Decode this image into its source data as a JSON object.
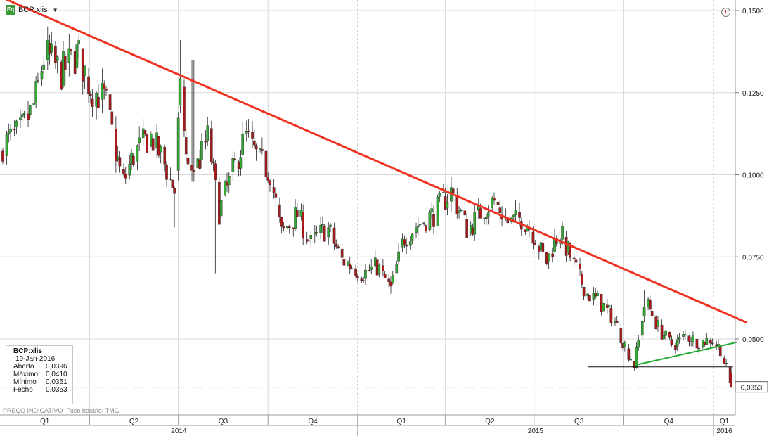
{
  "header": {
    "icon_label": "Eq",
    "ticker": "BCP:xlis"
  },
  "info_box": {
    "title": "BCP:xlis",
    "date": "19-Jan-2016",
    "rows": [
      {
        "label": "Aberto",
        "value": "0,0396"
      },
      {
        "label": "Máximo",
        "value": "0,0410"
      },
      {
        "label": "Mínimo",
        "value": "0,0351"
      },
      {
        "label": "Fecho",
        "value": "0,0353"
      }
    ]
  },
  "footer": {
    "price_type": "PREÇO INDICATIVO",
    "timezone": "Fuso horário: TMG"
  },
  "colors": {
    "up": "#33aa33",
    "down": "#aa1a1a",
    "resistance": "#ee3322",
    "support": "#22aa33",
    "grid": "#d8d8d8"
  },
  "chart_data": {
    "type": "candlestick",
    "series_name": "BCP:xlis",
    "ylim": [
      0.03,
      0.152
    ],
    "y_ticks": [
      "0,1500",
      "0,1250",
      "0,1000",
      "0,0750",
      "0,0500"
    ],
    "y_tick_values": [
      0.15,
      0.125,
      0.1,
      0.075,
      0.05
    ],
    "last_price_label": "0,0353",
    "last_price": 0.0353,
    "x_quarters": [
      "Q1",
      "Q2",
      "Q3",
      "Q4",
      "Q1",
      "Q2",
      "Q3",
      "Q4",
      "Q1"
    ],
    "x_years": [
      "2014",
      "2015",
      "2016"
    ],
    "x_range": [
      "2014-01-02",
      "2016-01-19"
    ],
    "close_path": [
      [
        "2014-01-02",
        0.109
      ],
      [
        "2014-01-20",
        0.113
      ],
      [
        "2014-02-03",
        0.121
      ],
      [
        "2014-02-14",
        0.137
      ],
      [
        "2014-03-03",
        0.131
      ],
      [
        "2014-03-20",
        0.137
      ],
      [
        "2014-04-03",
        0.126
      ],
      [
        "2014-04-17",
        0.123
      ],
      [
        "2014-05-05",
        0.097
      ],
      [
        "2014-05-16",
        0.106
      ],
      [
        "2014-06-02",
        0.112
      ],
      [
        "2014-06-16",
        0.104
      ],
      [
        "2014-06-27",
        0.095
      ],
      [
        "2014-07-04",
        0.129
      ],
      [
        "2014-07-10",
        0.101
      ],
      [
        "2014-07-21",
        0.103
      ],
      [
        "2014-08-01",
        0.112
      ],
      [
        "2014-08-11",
        0.088
      ],
      [
        "2014-08-25",
        0.1
      ],
      [
        "2014-09-08",
        0.112
      ],
      [
        "2014-09-22",
        0.104
      ],
      [
        "2014-10-03",
        0.101
      ],
      [
        "2014-10-15",
        0.082
      ],
      [
        "2014-10-31",
        0.088
      ],
      [
        "2014-11-14",
        0.079
      ],
      [
        "2014-12-01",
        0.084
      ],
      [
        "2014-12-16",
        0.074
      ],
      [
        "2015-01-07",
        0.07
      ],
      [
        "2015-01-21",
        0.072
      ],
      [
        "2015-02-04",
        0.065
      ],
      [
        "2015-02-18",
        0.081
      ],
      [
        "2015-03-04",
        0.085
      ],
      [
        "2015-03-20",
        0.088
      ],
      [
        "2015-04-07",
        0.095
      ],
      [
        "2015-04-24",
        0.083
      ],
      [
        "2015-05-08",
        0.089
      ],
      [
        "2015-05-22",
        0.092
      ],
      [
        "2015-06-05",
        0.085
      ],
      [
        "2015-06-19",
        0.087
      ],
      [
        "2015-07-01",
        0.082
      ],
      [
        "2015-07-13",
        0.073
      ],
      [
        "2015-07-27",
        0.083
      ],
      [
        "2015-08-10",
        0.073
      ],
      [
        "2015-08-24",
        0.064
      ],
      [
        "2015-09-07",
        0.061
      ],
      [
        "2015-09-21",
        0.056
      ],
      [
        "2015-10-02",
        0.048
      ],
      [
        "2015-10-12",
        0.042
      ],
      [
        "2015-10-23",
        0.062
      ],
      [
        "2015-11-06",
        0.053
      ],
      [
        "2015-11-20",
        0.048
      ],
      [
        "2015-12-04",
        0.051
      ],
      [
        "2015-12-18",
        0.049
      ],
      [
        "2015-12-30",
        0.05
      ],
      [
        "2016-01-08",
        0.047
      ],
      [
        "2016-01-14",
        0.041
      ],
      [
        "2016-01-19",
        0.0353
      ]
    ],
    "trendlines": [
      {
        "role": "resistance",
        "color": "#ee3322",
        "from": [
          "2014-01-01",
          0.154
        ],
        "to": [
          "2016-02-04",
          0.055
        ]
      },
      {
        "role": "support",
        "color": "#22aa33",
        "from": [
          "2015-10-12",
          0.042
        ],
        "to": [
          "2016-01-25",
          0.049
        ]
      },
      {
        "role": "horizontal",
        "color": "#111111",
        "from": [
          "2015-08-25",
          0.0415
        ],
        "to": [
          "2016-01-21",
          0.0415
        ]
      }
    ]
  }
}
